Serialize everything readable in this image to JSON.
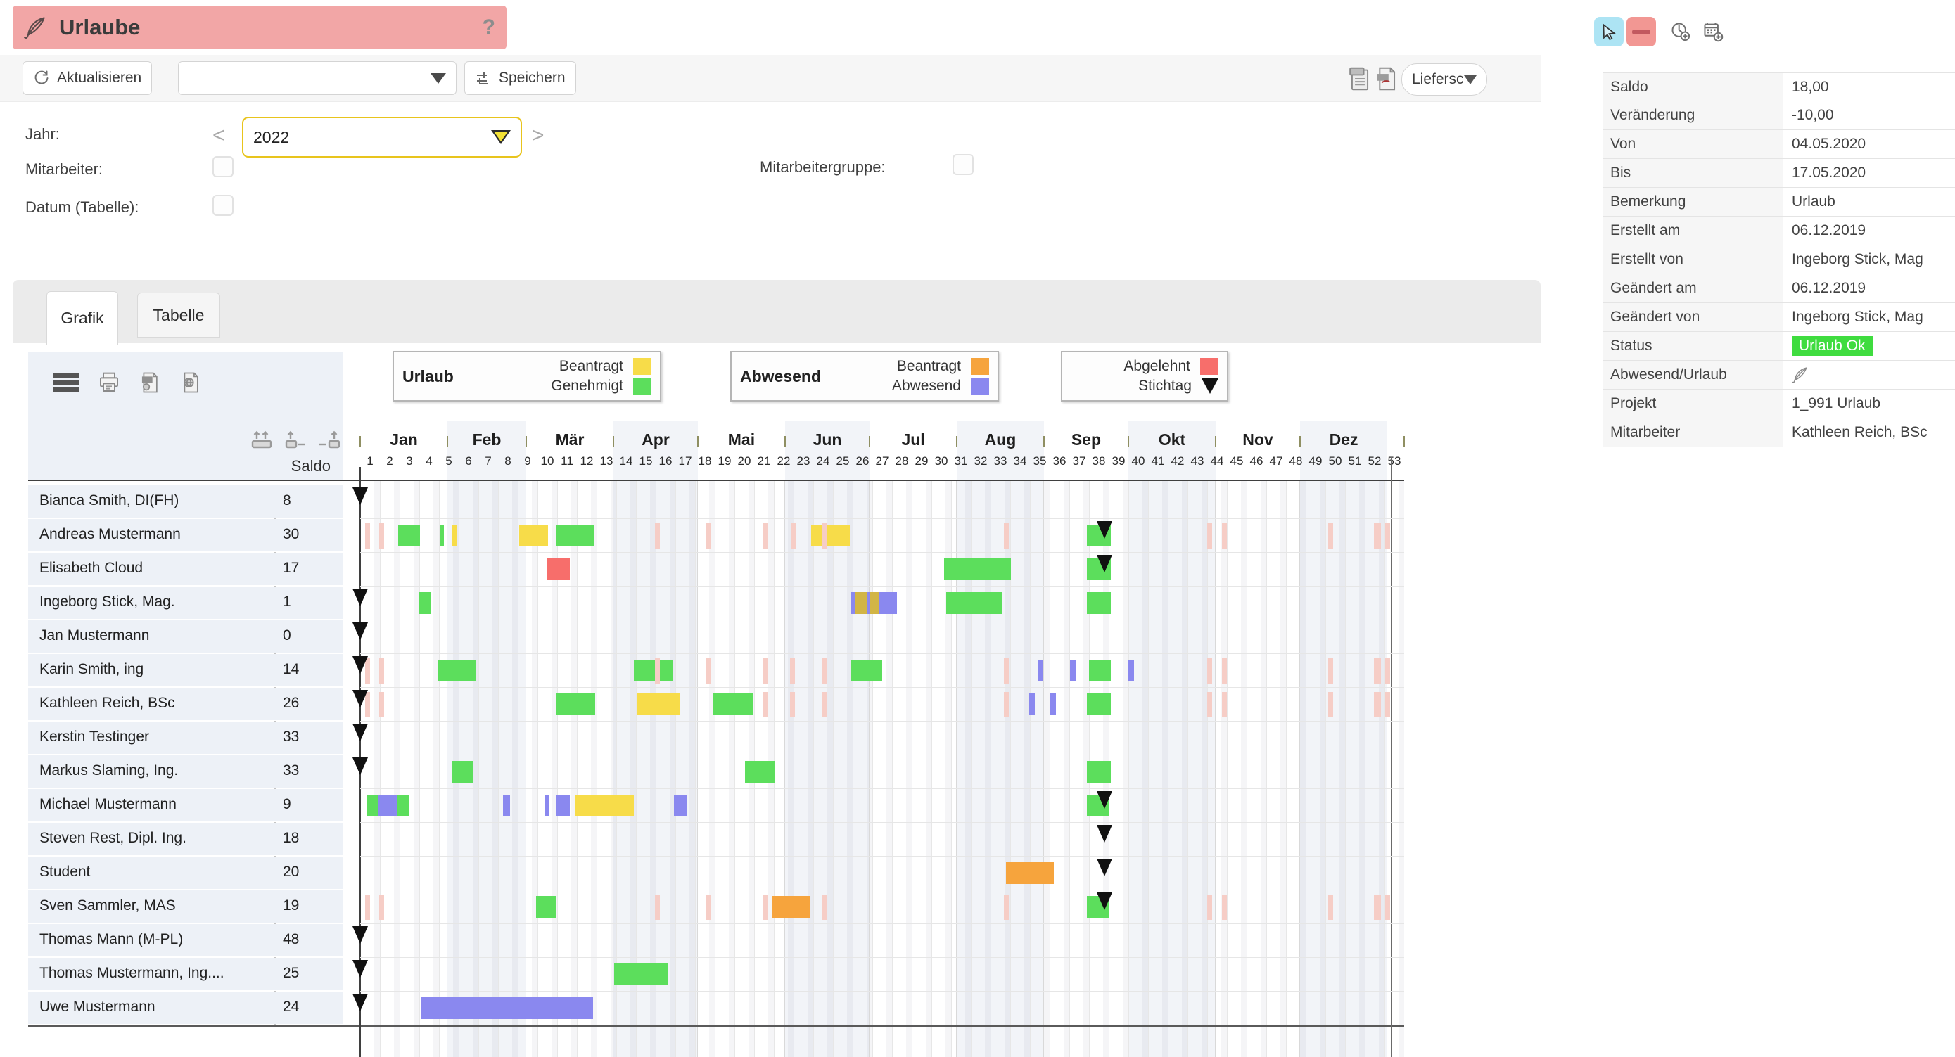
{
  "app": {
    "title": "Urlaube",
    "help": "?"
  },
  "toolbar": {
    "refresh": "Aktualisieren",
    "preset_value": "",
    "save": "Speichern",
    "delivery": "Liefersch"
  },
  "filters": {
    "year_label": "Jahr:",
    "year_value": "2022",
    "prev": "<",
    "next": ">",
    "employee_label": "Mitarbeiter:",
    "employee_group_label": "Mitarbeitergruppe:",
    "date_label": "Datum (Tabelle):"
  },
  "tabs": [
    {
      "label": "Grafik",
      "active": true
    },
    {
      "label": "Tabelle",
      "active": false
    }
  ],
  "legend": [
    {
      "title": "Urlaub",
      "items": [
        {
          "label": "Beantragt",
          "swatch": "requested"
        },
        {
          "label": "Genehmigt",
          "swatch": "approved"
        }
      ]
    },
    {
      "title": "Abwesend",
      "items": [
        {
          "label": "Beantragt",
          "swatch": "absent_requested"
        },
        {
          "label": "Abwesend",
          "swatch": "absent"
        }
      ]
    },
    {
      "title": "",
      "items": [
        {
          "label": "Abgelehnt",
          "swatch": "rejected"
        },
        {
          "label": "Stichtag",
          "swatch": "marker"
        }
      ]
    }
  ],
  "colors": {
    "requested": "#f7dc49",
    "approved": "#5cde5c",
    "absent_requested": "#f6a43d",
    "absent": "#8a88ef",
    "rejected": "#f76e6b",
    "holiday": "#f6cdc6",
    "gold": "#d2b545",
    "marker": "#111111",
    "status_badge": "#3fdc3f",
    "banner": "#f2a6a6",
    "year_border": "#e8c41d"
  },
  "chart_data": {
    "type": "gantt",
    "saldo_header": "Saldo",
    "week_ticks": [
      1,
      2,
      3,
      4,
      5,
      6,
      7,
      8,
      9,
      10,
      11,
      12,
      13,
      14,
      15,
      16,
      17,
      18,
      19,
      20,
      21,
      22,
      23,
      24,
      25,
      26,
      27,
      28,
      29,
      30,
      31,
      32,
      33,
      34,
      35,
      36,
      37,
      38,
      39,
      40,
      41,
      42,
      43,
      44,
      45,
      46,
      47,
      48,
      49,
      50,
      51,
      52,
      53
    ],
    "months": [
      {
        "label": "Jan",
        "start": 1,
        "end": 5.43,
        "shaded": false
      },
      {
        "label": "Feb",
        "start": 5.43,
        "end": 9.43,
        "shaded": true
      },
      {
        "label": "Mär",
        "start": 9.43,
        "end": 13.86,
        "shaded": false
      },
      {
        "label": "Apr",
        "start": 13.86,
        "end": 18.14,
        "shaded": true
      },
      {
        "label": "Mai",
        "start": 18.14,
        "end": 22.57,
        "shaded": false
      },
      {
        "label": "Jun",
        "start": 22.57,
        "end": 26.86,
        "shaded": true
      },
      {
        "label": "Jul",
        "start": 26.86,
        "end": 31.29,
        "shaded": false
      },
      {
        "label": "Aug",
        "start": 31.29,
        "end": 35.71,
        "shaded": true
      },
      {
        "label": "Sep",
        "start": 35.71,
        "end": 40.0,
        "shaded": false
      },
      {
        "label": "Okt",
        "start": 40.0,
        "end": 44.43,
        "shaded": true
      },
      {
        "label": "Nov",
        "start": 44.43,
        "end": 48.71,
        "shaded": false
      },
      {
        "label": "Dez",
        "start": 48.71,
        "end": 53.15,
        "shaded": true
      }
    ],
    "employees": [
      {
        "name": "Bianca Smith, DI(FH)",
        "saldo": "8",
        "markers": [
          1
        ],
        "bars": []
      },
      {
        "name": "Andreas Mustermann",
        "saldo": "30",
        "markers": [
          38.8
        ],
        "bars": [
          {
            "s": 1.25,
            "t": "holiday"
          },
          {
            "s": 1.96,
            "t": "holiday"
          },
          {
            "s": 2.93,
            "e": 4.04,
            "t": "approved"
          },
          {
            "s": 5.04,
            "e": 5.25,
            "t": "approved"
          },
          {
            "s": 5.68,
            "e": 5.93,
            "t": "requested"
          },
          {
            "s": 9.07,
            "e": 10.54,
            "t": "requested"
          },
          {
            "s": 10.93,
            "e": 12.89,
            "t": "approved"
          },
          {
            "s": 15.96,
            "t": "holiday"
          },
          {
            "s": 18.57,
            "t": "holiday"
          },
          {
            "s": 21.43,
            "t": "holiday"
          },
          {
            "s": 22.89,
            "t": "holiday"
          },
          {
            "s": 23.89,
            "e": 25.86,
            "t": "requested"
          },
          {
            "s": 24.43,
            "t": "holiday"
          },
          {
            "s": 33.68,
            "t": "holiday"
          },
          {
            "s": 37.9,
            "e": 39.1,
            "t": "approved"
          },
          {
            "s": 44.0,
            "t": "holiday"
          },
          {
            "s": 44.75,
            "t": "holiday"
          },
          {
            "s": 50.14,
            "t": "holiday"
          },
          {
            "s": 52.46,
            "e": 52.82,
            "t": "holiday"
          },
          {
            "s": 53.05,
            "t": "holiday"
          }
        ]
      },
      {
        "name": "Elisabeth Cloud",
        "saldo": "17",
        "markers": [
          38.8
        ],
        "bars": [
          {
            "s": 10.5,
            "e": 11.64,
            "t": "rejected"
          },
          {
            "s": 30.64,
            "e": 34.04,
            "t": "approved"
          },
          {
            "s": 37.9,
            "e": 39.1,
            "t": "approved"
          }
        ]
      },
      {
        "name": "Ingeborg Stick, Mag.",
        "saldo": "1",
        "markers": [
          1
        ],
        "bars": [
          {
            "s": 3.96,
            "e": 4.57,
            "t": "approved"
          },
          {
            "s": 25.93,
            "e": 26.11,
            "t": "absent"
          },
          {
            "s": 26.11,
            "e": 26.71,
            "t": "gold"
          },
          {
            "s": 26.71,
            "e": 26.89,
            "t": "absent"
          },
          {
            "s": 26.89,
            "e": 27.32,
            "t": "gold"
          },
          {
            "s": 27.32,
            "e": 28.25,
            "t": "absent"
          },
          {
            "s": 30.75,
            "e": 33.6,
            "t": "approved"
          },
          {
            "s": 37.9,
            "e": 39.1,
            "t": "approved"
          }
        ]
      },
      {
        "name": "Jan Mustermann",
        "saldo": "0",
        "markers": [
          1
        ],
        "bars": []
      },
      {
        "name": "Karin Smith, ing",
        "saldo": "14",
        "markers": [
          1
        ],
        "bars": [
          {
            "s": 1.25,
            "t": "holiday"
          },
          {
            "s": 1.96,
            "t": "holiday"
          },
          {
            "s": 4.96,
            "e": 6.89,
            "t": "approved"
          },
          {
            "s": 14.89,
            "e": 16.89,
            "t": "approved"
          },
          {
            "s": 15.96,
            "t": "holiday"
          },
          {
            "s": 18.57,
            "t": "holiday"
          },
          {
            "s": 21.43,
            "t": "holiday"
          },
          {
            "s": 22.82,
            "t": "holiday"
          },
          {
            "s": 24.43,
            "t": "holiday"
          },
          {
            "s": 25.93,
            "e": 27.5,
            "t": "approved"
          },
          {
            "s": 33.68,
            "t": "holiday"
          },
          {
            "s": 35.39,
            "e": 35.68,
            "t": "absent"
          },
          {
            "s": 37.04,
            "e": 37.32,
            "t": "absent"
          },
          {
            "s": 38.0,
            "e": 39.1,
            "t": "approved"
          },
          {
            "s": 40.0,
            "e": 40.29,
            "t": "absent"
          },
          {
            "s": 44.0,
            "t": "holiday"
          },
          {
            "s": 44.75,
            "t": "holiday"
          },
          {
            "s": 50.14,
            "t": "holiday"
          },
          {
            "s": 52.46,
            "e": 52.82,
            "t": "holiday"
          },
          {
            "s": 53.05,
            "t": "holiday"
          }
        ]
      },
      {
        "name": "Kathleen Reich, BSc",
        "saldo": "26",
        "markers": [
          1
        ],
        "bars": [
          {
            "s": 1.25,
            "t": "holiday"
          },
          {
            "s": 1.96,
            "t": "holiday"
          },
          {
            "s": 10.93,
            "e": 12.93,
            "t": "approved"
          },
          {
            "s": 15.07,
            "e": 17.25,
            "t": "requested"
          },
          {
            "s": 18.93,
            "e": 20.96,
            "t": "approved"
          },
          {
            "s": 21.43,
            "t": "holiday"
          },
          {
            "s": 22.82,
            "t": "holiday"
          },
          {
            "s": 24.43,
            "t": "holiday"
          },
          {
            "s": 33.68,
            "t": "holiday"
          },
          {
            "s": 34.96,
            "e": 35.25,
            "t": "absent"
          },
          {
            "s": 36.04,
            "e": 36.32,
            "t": "absent"
          },
          {
            "s": 37.9,
            "e": 39.1,
            "t": "approved"
          },
          {
            "s": 44.0,
            "t": "holiday"
          },
          {
            "s": 44.75,
            "t": "holiday"
          },
          {
            "s": 50.14,
            "t": "holiday"
          },
          {
            "s": 52.46,
            "e": 52.82,
            "t": "holiday"
          },
          {
            "s": 53.05,
            "t": "holiday"
          }
        ]
      },
      {
        "name": "Kerstin Testinger",
        "saldo": "33",
        "markers": [
          1
        ],
        "bars": []
      },
      {
        "name": "Markus Slaming, Ing.",
        "saldo": "33",
        "markers": [
          1
        ],
        "bars": [
          {
            "s": 5.68,
            "e": 6.71,
            "t": "approved"
          },
          {
            "s": 20.54,
            "e": 22.07,
            "t": "approved"
          },
          {
            "s": 37.9,
            "e": 39.1,
            "t": "approved"
          }
        ]
      },
      {
        "name": "Michael Mustermann",
        "saldo": "9",
        "markers": [
          38.8
        ],
        "bars": [
          {
            "s": 1.32,
            "e": 1.93,
            "t": "approved"
          },
          {
            "s": 1.93,
            "e": 2.89,
            "t": "absent"
          },
          {
            "s": 2.89,
            "e": 3.46,
            "t": "approved"
          },
          {
            "s": 8.25,
            "e": 8.61,
            "t": "absent"
          },
          {
            "s": 10.36,
            "e": 10.57,
            "t": "absent"
          },
          {
            "s": 10.93,
            "e": 11.64,
            "t": "absent"
          },
          {
            "s": 11.89,
            "e": 14.89,
            "t": "requested"
          },
          {
            "s": 16.93,
            "e": 17.61,
            "t": "absent"
          },
          {
            "s": 37.9,
            "e": 39.0,
            "t": "approved"
          }
        ]
      },
      {
        "name": "Steven Rest, Dipl. Ing.",
        "saldo": "18",
        "markers": [
          38.8
        ],
        "bars": []
      },
      {
        "name": "Student",
        "saldo": "20",
        "markers": [
          38.8
        ],
        "bars": [
          {
            "s": 33.79,
            "e": 36.21,
            "t": "absent_requested"
          }
        ]
      },
      {
        "name": "Sven Sammler, MAS",
        "saldo": "19",
        "markers": [
          38.8
        ],
        "bars": [
          {
            "s": 1.25,
            "t": "holiday"
          },
          {
            "s": 1.96,
            "t": "holiday"
          },
          {
            "s": 9.93,
            "e": 10.93,
            "t": "approved"
          },
          {
            "s": 15.96,
            "t": "holiday"
          },
          {
            "s": 18.57,
            "t": "holiday"
          },
          {
            "s": 21.43,
            "t": "holiday"
          },
          {
            "s": 21.93,
            "e": 23.86,
            "t": "absent_requested"
          },
          {
            "s": 24.43,
            "t": "holiday"
          },
          {
            "s": 33.68,
            "t": "holiday"
          },
          {
            "s": 37.9,
            "e": 39.0,
            "t": "approved"
          },
          {
            "s": 44.0,
            "t": "holiday"
          },
          {
            "s": 44.75,
            "t": "holiday"
          },
          {
            "s": 50.14,
            "t": "holiday"
          },
          {
            "s": 52.46,
            "e": 52.82,
            "t": "holiday"
          },
          {
            "s": 53.05,
            "t": "holiday"
          }
        ]
      },
      {
        "name": "Thomas Mann (M-PL)",
        "saldo": "48",
        "markers": [
          1
        ],
        "bars": []
      },
      {
        "name": "Thomas Mustermann, Ing....",
        "saldo": "25",
        "markers": [
          1
        ],
        "bars": [
          {
            "s": 13.89,
            "e": 16.64,
            "t": "approved"
          }
        ]
      },
      {
        "name": "Uwe Mustermann",
        "saldo": "24",
        "markers": [
          1
        ],
        "bars": [
          {
            "s": 4.07,
            "e": 12.82,
            "t": "absent"
          }
        ]
      }
    ]
  },
  "details_panel": {
    "rows": [
      {
        "label": "Saldo",
        "value": "18,00"
      },
      {
        "label": "Veränderung",
        "value": "-10,00"
      },
      {
        "label": "Von",
        "value": "04.05.2020"
      },
      {
        "label": "Bis",
        "value": "17.05.2020"
      },
      {
        "label": "Bemerkung",
        "value": "Urlaub"
      },
      {
        "label": "Erstellt am",
        "value": "06.12.2019"
      },
      {
        "label": "Erstellt von",
        "value": "Ingeborg Stick, Mag"
      },
      {
        "label": "Geändert am",
        "value": "06.12.2019"
      },
      {
        "label": "Geändert von",
        "value": "Ingeborg Stick, Mag"
      },
      {
        "label": "Status",
        "value": "Urlaub Ok",
        "type": "badge"
      },
      {
        "label": "Abwesend/Urlaub",
        "value": "",
        "type": "umbrella"
      },
      {
        "label": "Projekt",
        "value": "1_991 Urlaub"
      },
      {
        "label": "Mitarbeiter",
        "value": "Kathleen Reich, BSc"
      }
    ]
  }
}
